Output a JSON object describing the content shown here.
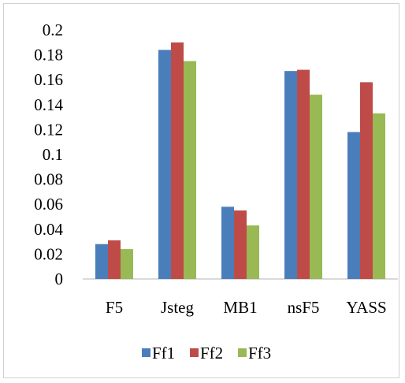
{
  "chart_data": {
    "type": "bar",
    "categories": [
      "F5",
      "Jsteg",
      "MB1",
      "nsF5",
      "YASS"
    ],
    "series": [
      {
        "name": "Ff1",
        "color": "#4a7ebb",
        "values": [
          0.028,
          0.184,
          0.058,
          0.167,
          0.118
        ]
      },
      {
        "name": "Ff2",
        "color": "#be4b48",
        "values": [
          0.031,
          0.19,
          0.055,
          0.168,
          0.158
        ]
      },
      {
        "name": "Ff3",
        "color": "#98b954",
        "values": [
          0.024,
          0.175,
          0.043,
          0.148,
          0.133
        ]
      }
    ],
    "ylim": [
      0,
      0.2
    ],
    "yticks": [
      "0",
      "0.02",
      "0.04",
      "0.06",
      "0.08",
      "0.1",
      "0.12",
      "0.14",
      "0.16",
      "0.18",
      "0.2"
    ],
    "grid": false,
    "legend_position": "bottom"
  }
}
